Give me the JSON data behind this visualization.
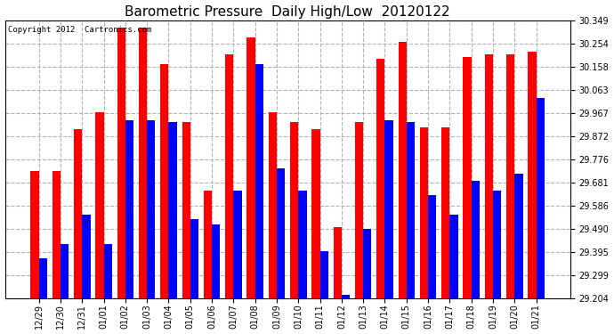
{
  "title": "Barometric Pressure  Daily High/Low  20120122",
  "copyright": "Copyright 2012  Cartronics.com",
  "dates": [
    "12/29",
    "12/30",
    "12/31",
    "01/01",
    "01/02",
    "01/03",
    "01/04",
    "01/05",
    "01/06",
    "01/07",
    "01/08",
    "01/09",
    "01/10",
    "01/11",
    "01/12",
    "01/13",
    "01/14",
    "01/15",
    "01/16",
    "01/17",
    "01/18",
    "01/19",
    "01/20",
    "01/21"
  ],
  "highs": [
    29.73,
    29.73,
    29.9,
    29.97,
    30.32,
    30.32,
    30.17,
    29.93,
    29.65,
    30.21,
    30.28,
    29.97,
    29.93,
    29.9,
    29.5,
    29.93,
    30.19,
    30.26,
    29.91,
    29.91,
    30.2,
    30.21,
    30.21,
    30.22
  ],
  "lows": [
    29.37,
    29.43,
    29.55,
    29.43,
    29.94,
    29.94,
    29.93,
    29.53,
    29.51,
    29.65,
    30.17,
    29.74,
    29.65,
    29.4,
    29.22,
    29.49,
    29.94,
    29.93,
    29.63,
    29.55,
    29.69,
    29.65,
    29.72,
    30.03
  ],
  "high_color": "#ff0000",
  "low_color": "#0000ff",
  "bg_color": "#ffffff",
  "grid_color": "#aaaaaa",
  "yticks": [
    29.204,
    29.299,
    29.395,
    29.49,
    29.586,
    29.681,
    29.776,
    29.872,
    29.967,
    30.063,
    30.158,
    30.254,
    30.349
  ],
  "ymin": 29.204,
  "ymax": 30.349,
  "bar_width": 0.38,
  "title_fontsize": 11,
  "tick_fontsize": 7,
  "figwidth": 6.9,
  "figheight": 3.75,
  "dpi": 100
}
